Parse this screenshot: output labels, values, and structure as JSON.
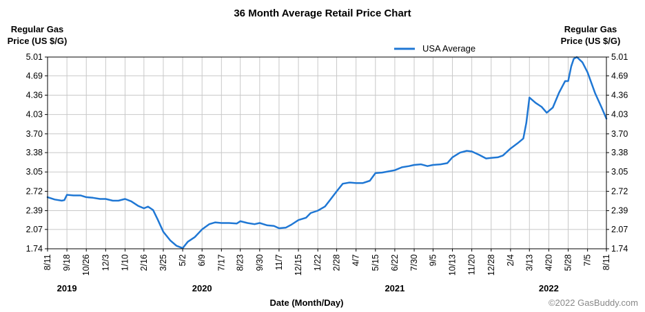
{
  "chart_data": {
    "type": "line",
    "title": "36 Month Average Retail Price Chart",
    "ylabel_left": [
      "Regular Gas",
      "Price (US $/G)"
    ],
    "ylabel_right": [
      "Regular Gas",
      "Price (US $/G)"
    ],
    "xlabel": "Date (Month/Day)",
    "ylim": [
      1.74,
      5.01
    ],
    "y_ticks": [
      "5.01",
      "4.69",
      "4.36",
      "4.03",
      "3.70",
      "3.38",
      "3.05",
      "2.72",
      "2.39",
      "2.07",
      "1.74"
    ],
    "x_ticks": [
      {
        "label": "8/11",
        "date": "2019-08-11"
      },
      {
        "label": "9/18",
        "date": "2019-09-18"
      },
      {
        "label": "10/26",
        "date": "2019-10-26"
      },
      {
        "label": "12/3",
        "date": "2019-12-03"
      },
      {
        "label": "1/10",
        "date": "2020-01-10"
      },
      {
        "label": "2/16",
        "date": "2020-02-16"
      },
      {
        "label": "3/25",
        "date": "2020-03-25"
      },
      {
        "label": "5/2",
        "date": "2020-05-02"
      },
      {
        "label": "6/9",
        "date": "2020-06-09"
      },
      {
        "label": "7/17",
        "date": "2020-07-17"
      },
      {
        "label": "8/23",
        "date": "2020-08-23"
      },
      {
        "label": "9/30",
        "date": "2020-09-30"
      },
      {
        "label": "11/7",
        "date": "2020-11-07"
      },
      {
        "label": "12/15",
        "date": "2020-12-15"
      },
      {
        "label": "1/22",
        "date": "2021-01-22"
      },
      {
        "label": "2/28",
        "date": "2021-02-28"
      },
      {
        "label": "4/7",
        "date": "2021-04-07"
      },
      {
        "label": "5/15",
        "date": "2021-05-15"
      },
      {
        "label": "6/22",
        "date": "2021-06-22"
      },
      {
        "label": "7/30",
        "date": "2021-07-30"
      },
      {
        "label": "9/5",
        "date": "2021-09-05"
      },
      {
        "label": "10/13",
        "date": "2021-10-13"
      },
      {
        "label": "11/20",
        "date": "2021-11-20"
      },
      {
        "label": "12/28",
        "date": "2021-12-28"
      },
      {
        "label": "2/4",
        "date": "2022-02-04"
      },
      {
        "label": "3/13",
        "date": "2022-03-13"
      },
      {
        "label": "4/20",
        "date": "2022-04-20"
      },
      {
        "label": "5/28",
        "date": "2022-05-28"
      },
      {
        "label": "7/5",
        "date": "2022-07-05"
      },
      {
        "label": "8/11",
        "date": "2022-08-11"
      }
    ],
    "years": [
      {
        "label": "2019",
        "date": "2019-09-18"
      },
      {
        "label": "2020",
        "date": "2020-06-09"
      },
      {
        "label": "2021",
        "date": "2021-06-22"
      },
      {
        "label": "2022",
        "date": "2022-04-20"
      }
    ],
    "legend": {
      "position": "top-center"
    },
    "grid": true,
    "series": [
      {
        "name": "USA Average",
        "color": "#1f77d4",
        "points": [
          [
            "2019-08-11",
            2.62
          ],
          [
            "2019-08-25",
            2.58
          ],
          [
            "2019-09-08",
            2.56
          ],
          [
            "2019-09-13",
            2.57
          ],
          [
            "2019-09-18",
            2.66
          ],
          [
            "2019-10-01",
            2.65
          ],
          [
            "2019-10-15",
            2.65
          ],
          [
            "2019-10-26",
            2.62
          ],
          [
            "2019-11-08",
            2.61
          ],
          [
            "2019-11-22",
            2.59
          ],
          [
            "2019-12-03",
            2.59
          ],
          [
            "2019-12-17",
            2.56
          ],
          [
            "2019-12-28",
            2.56
          ],
          [
            "2020-01-10",
            2.59
          ],
          [
            "2020-01-22",
            2.55
          ],
          [
            "2020-02-05",
            2.47
          ],
          [
            "2020-02-16",
            2.43
          ],
          [
            "2020-02-24",
            2.46
          ],
          [
            "2020-03-05",
            2.4
          ],
          [
            "2020-03-14",
            2.24
          ],
          [
            "2020-03-25",
            2.03
          ],
          [
            "2020-04-08",
            1.88
          ],
          [
            "2020-04-20",
            1.79
          ],
          [
            "2020-05-02",
            1.75
          ],
          [
            "2020-05-12",
            1.86
          ],
          [
            "2020-05-26",
            1.94
          ],
          [
            "2020-06-09",
            2.07
          ],
          [
            "2020-06-23",
            2.16
          ],
          [
            "2020-07-05",
            2.19
          ],
          [
            "2020-07-17",
            2.18
          ],
          [
            "2020-08-01",
            2.18
          ],
          [
            "2020-08-16",
            2.17
          ],
          [
            "2020-08-23",
            2.21
          ],
          [
            "2020-09-06",
            2.18
          ],
          [
            "2020-09-20",
            2.16
          ],
          [
            "2020-09-30",
            2.18
          ],
          [
            "2020-10-15",
            2.14
          ],
          [
            "2020-10-28",
            2.13
          ],
          [
            "2020-11-07",
            2.09
          ],
          [
            "2020-11-20",
            2.1
          ],
          [
            "2020-12-01",
            2.15
          ],
          [
            "2020-12-15",
            2.23
          ],
          [
            "2020-12-30",
            2.27
          ],
          [
            "2021-01-08",
            2.35
          ],
          [
            "2021-01-22",
            2.39
          ],
          [
            "2021-02-05",
            2.46
          ],
          [
            "2021-02-14",
            2.56
          ],
          [
            "2021-02-28",
            2.72
          ],
          [
            "2021-03-12",
            2.85
          ],
          [
            "2021-03-25",
            2.87
          ],
          [
            "2021-04-07",
            2.86
          ],
          [
            "2021-04-20",
            2.86
          ],
          [
            "2021-05-04",
            2.9
          ],
          [
            "2021-05-15",
            3.03
          ],
          [
            "2021-05-28",
            3.04
          ],
          [
            "2021-06-10",
            3.06
          ],
          [
            "2021-06-22",
            3.08
          ],
          [
            "2021-07-06",
            3.13
          ],
          [
            "2021-07-20",
            3.15
          ],
          [
            "2021-07-30",
            3.17
          ],
          [
            "2021-08-12",
            3.18
          ],
          [
            "2021-08-25",
            3.15
          ],
          [
            "2021-09-05",
            3.17
          ],
          [
            "2021-09-20",
            3.18
          ],
          [
            "2021-10-03",
            3.2
          ],
          [
            "2021-10-13",
            3.3
          ],
          [
            "2021-10-28",
            3.38
          ],
          [
            "2021-11-10",
            3.41
          ],
          [
            "2021-11-20",
            3.4
          ],
          [
            "2021-12-05",
            3.34
          ],
          [
            "2021-12-18",
            3.28
          ],
          [
            "2021-12-28",
            3.29
          ],
          [
            "2022-01-10",
            3.3
          ],
          [
            "2022-01-20",
            3.33
          ],
          [
            "2022-02-04",
            3.45
          ],
          [
            "2022-02-18",
            3.54
          ],
          [
            "2022-03-01",
            3.62
          ],
          [
            "2022-03-07",
            3.89
          ],
          [
            "2022-03-13",
            4.32
          ],
          [
            "2022-03-25",
            4.23
          ],
          [
            "2022-04-06",
            4.16
          ],
          [
            "2022-04-16",
            4.06
          ],
          [
            "2022-04-28",
            4.15
          ],
          [
            "2022-05-10",
            4.4
          ],
          [
            "2022-05-22",
            4.6
          ],
          [
            "2022-05-28",
            4.6
          ],
          [
            "2022-06-03",
            4.85
          ],
          [
            "2022-06-08",
            4.98
          ],
          [
            "2022-06-14",
            5.01
          ],
          [
            "2022-06-25",
            4.92
          ],
          [
            "2022-07-05",
            4.75
          ],
          [
            "2022-07-20",
            4.39
          ],
          [
            "2022-08-01",
            4.16
          ],
          [
            "2022-08-11",
            3.96
          ]
        ]
      }
    ]
  },
  "footer": {
    "copyright": "©2022 GasBuddy.com"
  }
}
